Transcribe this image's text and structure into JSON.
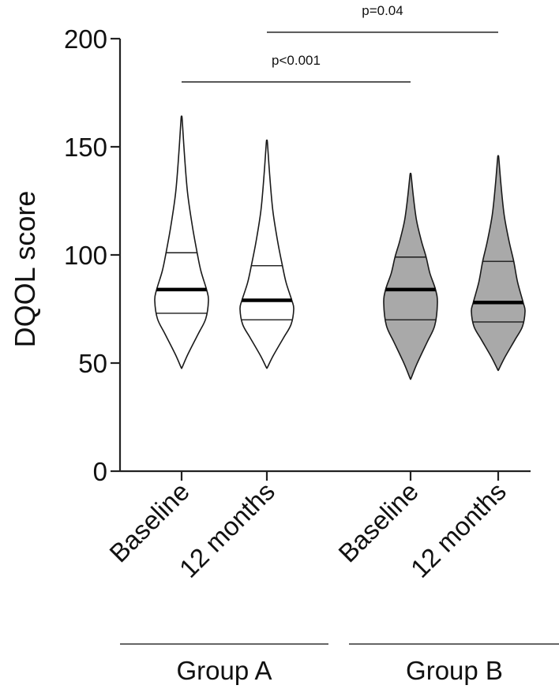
{
  "chart_data": {
    "type": "violin",
    "title": "",
    "xlabel": "",
    "ylabel": "DQOL score",
    "ylim": [
      0,
      200
    ],
    "yticks": [
      0,
      50,
      100,
      150,
      200
    ],
    "grid": false,
    "categories": [
      "Baseline",
      "12 months",
      "Baseline",
      "12 months"
    ],
    "groups": [
      {
        "label": "Group A",
        "members": [
          0,
          1
        ]
      },
      {
        "label": "Group B",
        "members": [
          2,
          3
        ]
      }
    ],
    "series": [
      {
        "group": "Group A",
        "label": "Baseline",
        "fill": "#ffffff",
        "min": 48,
        "max": 163,
        "q1": 73,
        "median": 84,
        "q3": 101
      },
      {
        "group": "Group A",
        "label": "12 months",
        "fill": "#ffffff",
        "min": 48,
        "max": 152,
        "q1": 70,
        "median": 79,
        "q3": 95
      },
      {
        "group": "Group B",
        "label": "Baseline",
        "fill": "#a9a9a9",
        "min": 43,
        "max": 137,
        "q1": 70,
        "median": 84,
        "q3": 99
      },
      {
        "group": "Group B",
        "label": "12 months",
        "fill": "#a9a9a9",
        "min": 47,
        "max": 145,
        "q1": 69,
        "median": 78,
        "q3": 97
      }
    ],
    "annotations": [
      {
        "text": "p<0.001",
        "from": 0,
        "to": 2,
        "y": 180
      },
      {
        "text": "p=0.04",
        "from": 1,
        "to": 3,
        "y": 203
      }
    ]
  }
}
